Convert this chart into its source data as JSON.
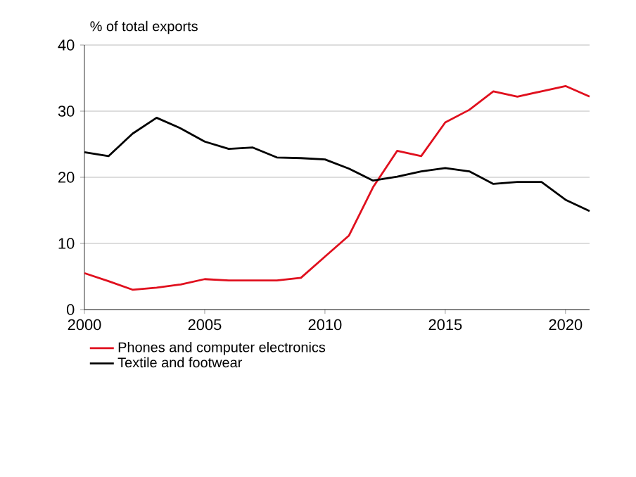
{
  "chart_data": {
    "type": "line",
    "ylabel": "% of total exports",
    "x": [
      2000,
      2001,
      2002,
      2003,
      2004,
      2005,
      2006,
      2007,
      2008,
      2009,
      2010,
      2011,
      2012,
      2013,
      2014,
      2015,
      2016,
      2017,
      2018,
      2019,
      2020,
      2021
    ],
    "series": [
      {
        "name": "Phones and computer electronics",
        "color": "#e0101e",
        "values": [
          5.5,
          4.3,
          3.0,
          3.3,
          3.8,
          4.6,
          4.4,
          4.4,
          4.4,
          4.8,
          8.0,
          11.2,
          18.5,
          24.0,
          23.2,
          28.3,
          30.2,
          33.0,
          32.2,
          33.0,
          33.8,
          32.2
        ]
      },
      {
        "name": "Textile and footwear",
        "color": "#000000",
        "values": [
          23.8,
          23.2,
          26.6,
          29.0,
          27.4,
          25.4,
          24.3,
          24.5,
          23.0,
          22.9,
          22.7,
          21.3,
          19.5,
          20.1,
          20.9,
          21.4,
          20.9,
          19.0,
          19.3,
          19.3,
          16.6,
          14.9
        ]
      }
    ],
    "xlim": [
      2000,
      2021
    ],
    "xticks": [
      2000,
      2005,
      2010,
      2015,
      2020
    ],
    "ylim": [
      0,
      40
    ],
    "yticks": [
      0,
      10,
      20,
      30,
      40
    ],
    "grid": "y",
    "legend": "bottom",
    "marker": "none",
    "line_style": "solid"
  }
}
